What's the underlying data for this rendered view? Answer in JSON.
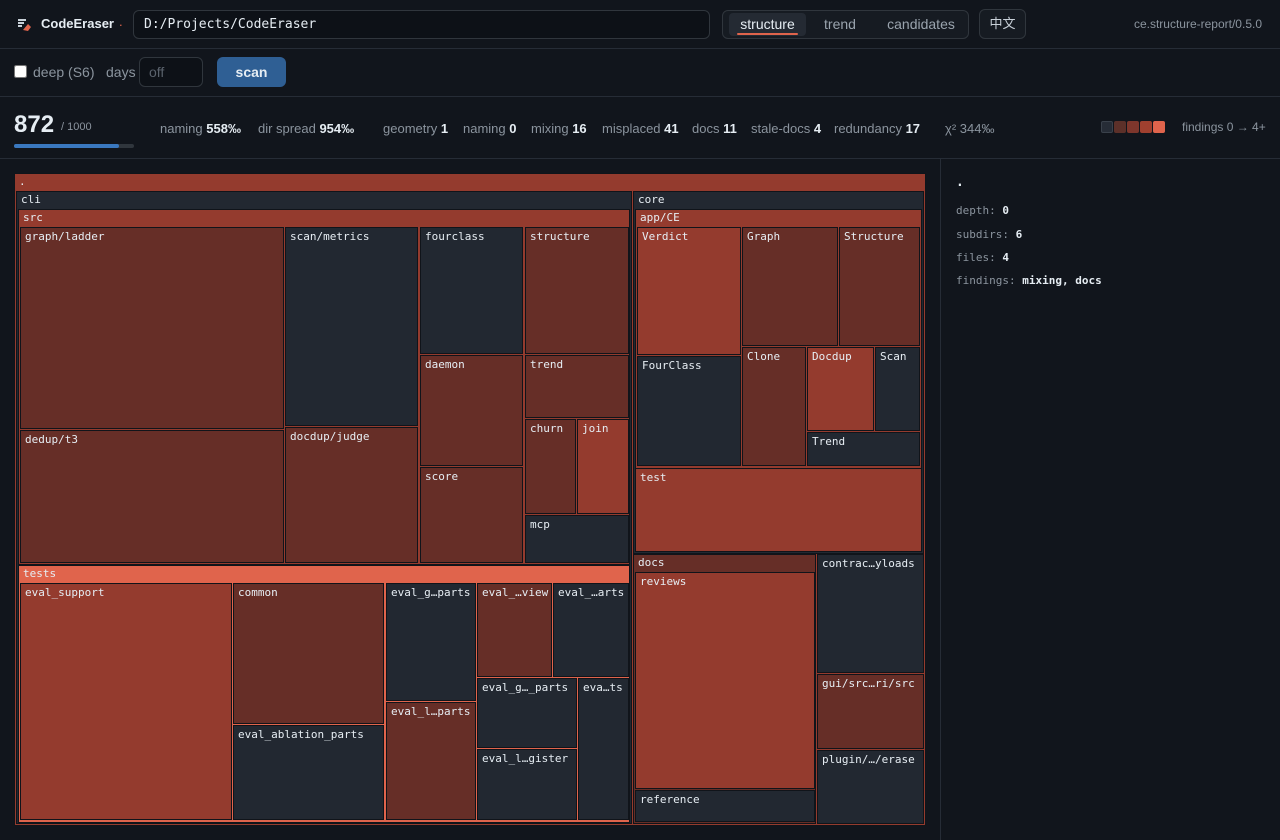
{
  "header": {
    "app_name": "CodeEraser",
    "brand_dot": ".",
    "path_value": "D:/Projects/CodeEraser",
    "tabs": [
      {
        "label": "structure",
        "active": true
      },
      {
        "label": "trend",
        "active": false
      },
      {
        "label": "candidates",
        "active": false
      }
    ],
    "lang_button": "中文",
    "version": "ce.structure-report/0.5.0"
  },
  "controls": {
    "deep_label": "deep (S6)",
    "deep_checked": false,
    "days_label": "days",
    "days_placeholder": "off",
    "scan_label": "scan"
  },
  "metrics": {
    "score": "872",
    "score_max": "/ 1000",
    "score_fraction": 0.872,
    "naming_label": "naming",
    "naming_value": "558‰",
    "dir_spread_label": "dir spread",
    "dir_spread_value": "954‰",
    "counts": [
      {
        "label": "geometry",
        "value": "1"
      },
      {
        "label": "naming",
        "value": "0"
      },
      {
        "label": "mixing",
        "value": "16"
      },
      {
        "label": "misplaced",
        "value": "41"
      },
      {
        "label": "docs",
        "value": "11"
      },
      {
        "label": "stale-docs",
        "value": "4"
      },
      {
        "label": "redundancy",
        "value": "17"
      }
    ],
    "chi": "χ² 344‰",
    "legend_colors": [
      "#262c36",
      "#5c3029",
      "#7d362c",
      "#a0402f",
      "#e0644c"
    ],
    "legend_label": "findings 0 → 4+"
  },
  "colors": {
    "level0": "#222831",
    "level1": "#5f3029",
    "level2": "#662e27",
    "level3": "#943b2e",
    "level4": "#e0644c"
  },
  "sidepanel": {
    "title": ".",
    "depth_label": "depth:",
    "depth_value": "0",
    "subdirs_label": "subdirs:",
    "subdirs_value": "6",
    "files_label": "files:",
    "files_value": "4",
    "findings_label": "findings:",
    "findings_value": "mixing, docs"
  },
  "treemap": {
    "root": ".",
    "cli": "cli",
    "src": "src",
    "src_children": [
      "graph/ladder",
      "dedup/t3",
      "scan/metrics",
      "docdup/judge",
      "fourclass",
      "daemon",
      "score",
      "structure",
      "trend",
      "churn",
      "join",
      "mcp"
    ],
    "tests": "tests",
    "tests_children": [
      "eval_support",
      "common",
      "eval_ablation_parts",
      "eval_g…parts",
      "eval_l…parts",
      "eval_…view",
      "eval_…arts",
      "eval_g…_parts",
      "eval_l…gister",
      "eva…ts"
    ],
    "core": "core",
    "app_ce": "app/CE",
    "app_children": [
      "Verdict",
      "FourClass",
      "Graph",
      "Structure",
      "Clone",
      "Docdup",
      "Scan",
      "Trend"
    ],
    "core_test": "test",
    "docs": "docs",
    "docs_children": [
      "reviews",
      "reference"
    ],
    "other_children": [
      "contrac…yloads",
      "gui/src…ri/src",
      "plugin/…/erase"
    ]
  }
}
